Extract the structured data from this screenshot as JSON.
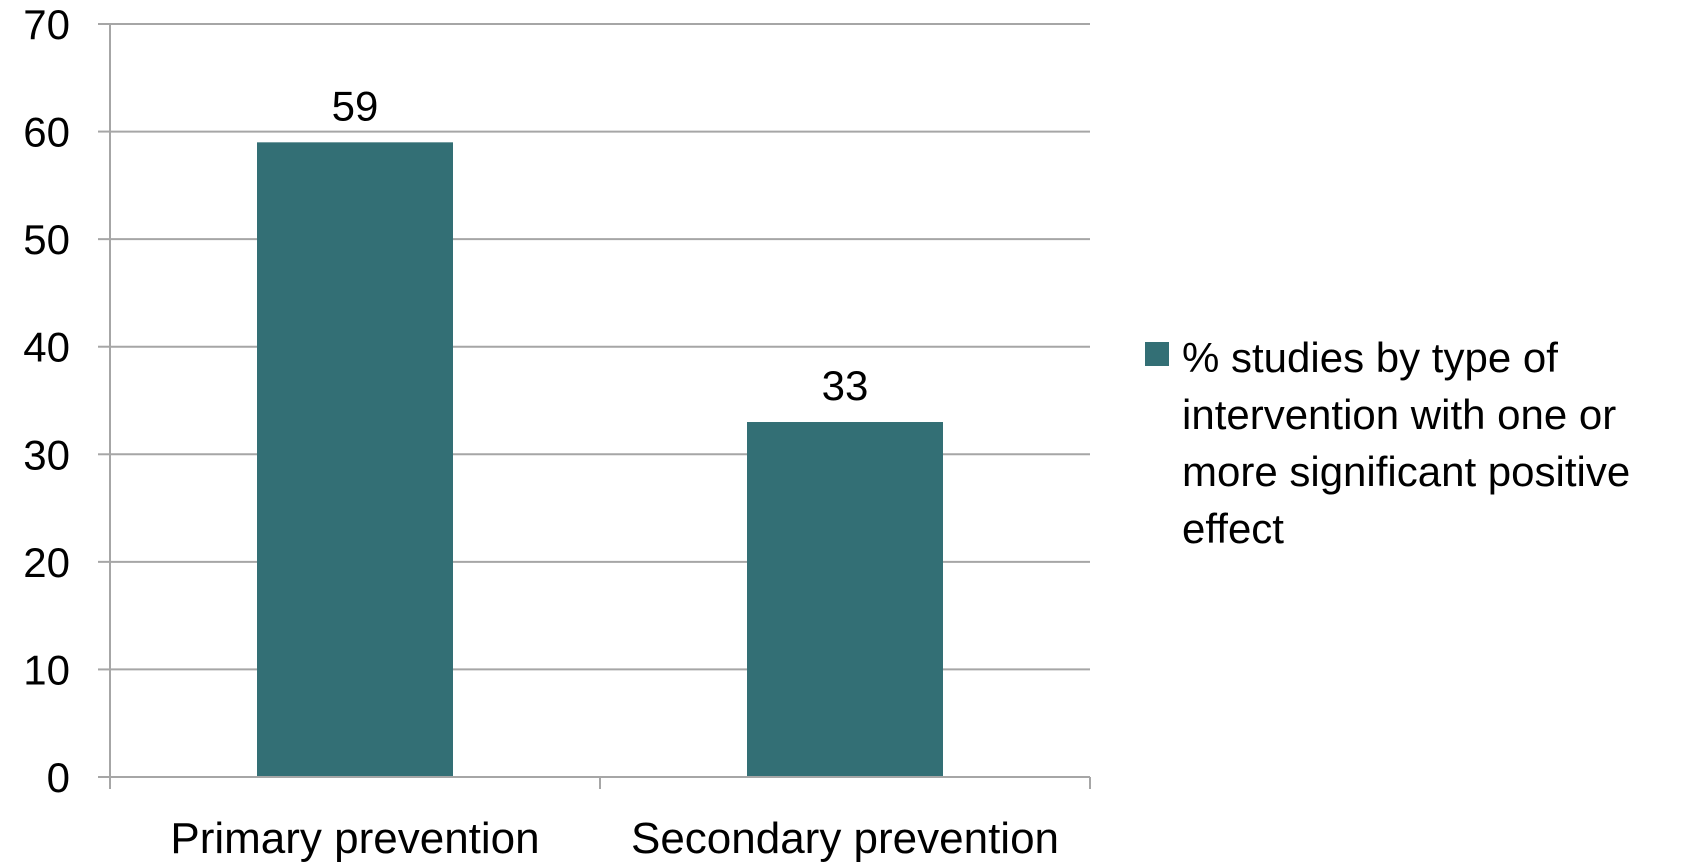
{
  "chart_data": {
    "type": "bar",
    "categories": [
      "Primary prevention",
      "Secondary prevention"
    ],
    "series": [
      {
        "name": "% studies by type of intervention with one or more significant positive effect",
        "values": [
          59,
          33
        ],
        "color": "#336f75"
      }
    ],
    "ylim": [
      0,
      70
    ],
    "yticks": [
      "0",
      "10",
      "20",
      "30",
      "40",
      "50",
      "60",
      "70"
    ],
    "grid": true,
    "legend_position": "right",
    "legend_lines": [
      "%  studies by type of",
      "intervention with one or",
      "more significant positive",
      "effect"
    ],
    "data_labels": [
      "59",
      "33"
    ],
    "gridline_color": "#a6a6a6",
    "axis_color": "#a6a6a6"
  }
}
